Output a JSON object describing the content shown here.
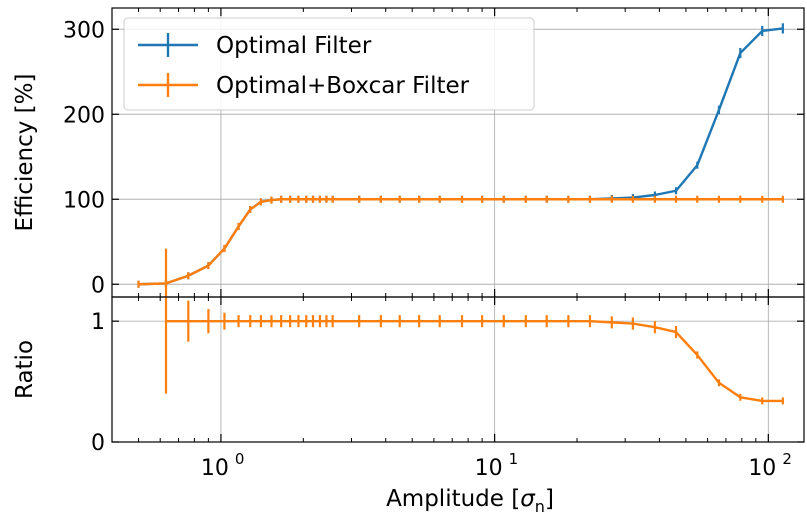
{
  "chart_data": [
    {
      "type": "line",
      "panel": "top",
      "ylabel": "Efficiency [%]",
      "xscale": "log",
      "xlim": [
        0.4,
        135
      ],
      "ylim": [
        -15,
        325
      ],
      "yticks": [
        0,
        100,
        200,
        300
      ],
      "ytick_labels": [
        "0",
        "100",
        "200",
        "300"
      ],
      "grid": true,
      "legend": "top-left",
      "series": [
        {
          "name": "Optimal Filter",
          "color": "#1f77b4",
          "x": [
            0.5,
            0.63,
            0.76,
            0.9,
            1.03,
            1.16,
            1.28,
            1.4,
            1.53,
            1.66,
            1.79,
            1.92,
            2.05,
            2.17,
            2.3,
            2.43,
            2.56,
            3.2,
            3.84,
            4.5,
            5.3,
            6.3,
            7.6,
            9.0,
            10.8,
            13.0,
            15.5,
            18.6,
            22.3,
            26.8,
            32,
            38.5,
            46,
            55,
            66,
            79,
            95,
            113
          ],
          "y": [
            0,
            1,
            10,
            22,
            42,
            68,
            88,
            97,
            99,
            100,
            100,
            100,
            100,
            100,
            100,
            100,
            100,
            100,
            100,
            100,
            100,
            100,
            100,
            100,
            100,
            100,
            100,
            100,
            100,
            101,
            102,
            105,
            110,
            140,
            205,
            272,
            298,
            301
          ],
          "yerr": [
            0,
            0,
            1,
            1,
            1.5,
            1.5,
            1.5,
            1,
            1,
            1,
            1,
            1,
            1,
            1,
            1,
            1,
            1,
            1,
            1,
            1,
            1,
            1,
            1,
            1,
            1,
            1,
            1,
            1,
            1,
            1,
            1.5,
            2,
            3,
            4,
            5,
            6,
            6,
            6
          ]
        },
        {
          "name": "Optimal+Boxcar Filter",
          "color": "#ff7f0e",
          "x": [
            0.5,
            0.63,
            0.76,
            0.9,
            1.03,
            1.16,
            1.28,
            1.4,
            1.53,
            1.66,
            1.79,
            1.92,
            2.05,
            2.17,
            2.3,
            2.43,
            2.56,
            3.2,
            3.84,
            4.5,
            5.3,
            6.3,
            7.6,
            9.0,
            10.8,
            13.0,
            15.5,
            18.6,
            22.3,
            26.8,
            32,
            38.5,
            46,
            55,
            66,
            79,
            95,
            113
          ],
          "y": [
            0,
            1,
            10,
            22,
            42,
            68,
            88,
            97,
            99,
            100,
            100,
            100,
            100,
            100,
            100,
            100,
            100,
            100,
            100,
            100,
            100,
            100,
            100,
            100,
            100,
            100,
            100,
            100,
            100,
            100,
            100,
            100,
            100,
            100,
            100,
            100,
            100,
            100
          ],
          "yerr": [
            0,
            0,
            1,
            1,
            1.5,
            1.5,
            1.5,
            1,
            1,
            1,
            1,
            1,
            1,
            1,
            1,
            1,
            1,
            1,
            1,
            1,
            1,
            1,
            1,
            1,
            1,
            1,
            1,
            1,
            1,
            1,
            1,
            1,
            1,
            1,
            1,
            1,
            1,
            1
          ]
        }
      ]
    },
    {
      "type": "line",
      "panel": "bottom",
      "xlabel": "Amplitude [σn]",
      "ylabel": "Ratio",
      "xscale": "log",
      "xlim": [
        0.4,
        135
      ],
      "ylim": [
        0,
        1.2
      ],
      "yticks": [
        0,
        1
      ],
      "ytick_labels": [
        "0",
        "1"
      ],
      "xticks": [
        1,
        10,
        100
      ],
      "xtick_labels": [
        "10⁰",
        "10¹",
        "10²"
      ],
      "grid": true,
      "series": [
        {
          "name": "Optimal+Boxcar Filter",
          "color": "#ff7f0e",
          "x": [
            0.63,
            0.76,
            0.9,
            1.03,
            1.16,
            1.28,
            1.4,
            1.53,
            1.66,
            1.79,
            1.92,
            2.05,
            2.17,
            2.3,
            2.43,
            2.56,
            3.2,
            3.84,
            4.5,
            5.3,
            6.3,
            7.6,
            9.0,
            10.8,
            13.0,
            15.5,
            18.6,
            22.3,
            26.8,
            32,
            38.5,
            46,
            55,
            66,
            79,
            95,
            113
          ],
          "y": [
            1.0,
            1.0,
            1.0,
            1.0,
            1.0,
            1.0,
            1.0,
            1.0,
            1.0,
            1.0,
            1.0,
            1.0,
            1.0,
            1.0,
            1.0,
            1.0,
            1.0,
            1.0,
            1.0,
            1.0,
            1.0,
            1.0,
            1.0,
            1.0,
            1.0,
            1.0,
            1.0,
            1.0,
            0.99,
            0.98,
            0.95,
            0.91,
            0.72,
            0.49,
            0.37,
            0.34,
            0.34
          ],
          "yerr": [
            0.6,
            0.17,
            0.1,
            0.07,
            0.05,
            0.05,
            0.05,
            0.05,
            0.05,
            0.05,
            0.05,
            0.05,
            0.05,
            0.05,
            0.05,
            0.05,
            0.05,
            0.05,
            0.05,
            0.05,
            0.05,
            0.05,
            0.05,
            0.05,
            0.05,
            0.05,
            0.05,
            0.05,
            0.05,
            0.05,
            0.05,
            0.05,
            0.03,
            0.01,
            0.01,
            0.01,
            0.01
          ]
        }
      ]
    }
  ]
}
